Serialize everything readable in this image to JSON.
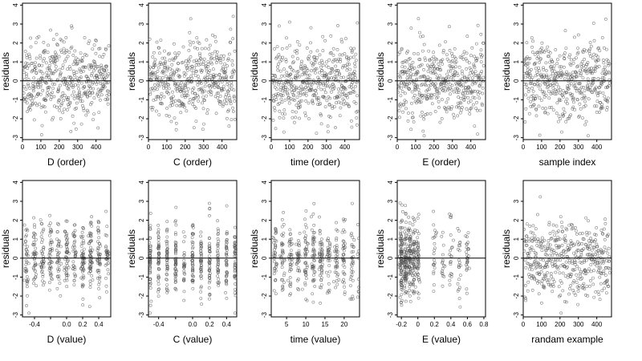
{
  "chart_data": [
    {
      "type": "scatter",
      "xlabel": "D (order)",
      "ylabel": "residuals",
      "xlim": [
        0,
        480
      ],
      "ylim": [
        -3.1,
        4.1
      ],
      "xticks": [
        0,
        100,
        200,
        300,
        400
      ],
      "yticks": [
        -3,
        -2,
        -1,
        0,
        1,
        2,
        3,
        4
      ],
      "hline": 0,
      "x_kind": "order",
      "x_clusters": [],
      "cluster_sd": 0,
      "seed": 11
    },
    {
      "type": "scatter",
      "xlabel": "C (order)",
      "ylabel": "residuals",
      "xlim": [
        0,
        480
      ],
      "ylim": [
        -3.1,
        4.1
      ],
      "xticks": [
        0,
        100,
        200,
        300,
        400
      ],
      "yticks": [
        -3,
        -2,
        -1,
        0,
        1,
        2,
        3,
        4
      ],
      "hline": 0,
      "x_kind": "order",
      "x_clusters": [],
      "cluster_sd": 0,
      "seed": 23
    },
    {
      "type": "scatter",
      "xlabel": "time (order)",
      "ylabel": "residuals",
      "xlim": [
        0,
        480
      ],
      "ylim": [
        -3.1,
        4.1
      ],
      "xticks": [
        0,
        100,
        200,
        300,
        400
      ],
      "yticks": [
        -3,
        -2,
        -1,
        0,
        1,
        2,
        3,
        4
      ],
      "hline": 0,
      "x_kind": "order",
      "x_clusters": [],
      "cluster_sd": 0,
      "seed": 37
    },
    {
      "type": "scatter",
      "xlabel": "E (order)",
      "ylabel": "residuals",
      "xlim": [
        0,
        480
      ],
      "ylim": [
        -3.1,
        4.1
      ],
      "xticks": [
        0,
        100,
        200,
        300,
        400
      ],
      "yticks": [
        -3,
        -2,
        -1,
        0,
        1,
        2,
        3,
        4
      ],
      "hline": 0,
      "x_kind": "order",
      "x_clusters": [],
      "cluster_sd": 0,
      "seed": 41
    },
    {
      "type": "scatter",
      "xlabel": "sample index",
      "ylabel": "residuals",
      "xlim": [
        0,
        480
      ],
      "ylim": [
        -3.1,
        4.1
      ],
      "xticks": [
        0,
        100,
        200,
        300,
        400
      ],
      "yticks": [
        -3,
        -2,
        -1,
        0,
        1,
        2,
        3,
        4
      ],
      "hline": 0,
      "x_kind": "order",
      "x_clusters": [],
      "cluster_sd": 0,
      "seed": 53
    },
    {
      "type": "scatter",
      "xlabel": "D (value)",
      "ylabel": "residuals",
      "xlim": [
        -0.55,
        0.55
      ],
      "ylim": [
        -3.1,
        4.1
      ],
      "xticks": [
        -0.4,
        -0.2,
        0.0,
        0.2,
        0.4
      ],
      "xtick_labels": [
        "-0.4",
        "",
        "0.0",
        "0.2",
        "0.4"
      ],
      "yticks": [
        -3,
        -2,
        -1,
        0,
        1,
        2,
        3,
        4
      ],
      "hline": 0,
      "x_kind": "clusters",
      "x_clusters": [
        -0.5,
        -0.4,
        -0.3,
        -0.2,
        -0.1,
        0.0,
        0.1,
        0.2,
        0.3,
        0.4,
        0.5
      ],
      "cluster_sd": 0.012,
      "seed": 61
    },
    {
      "type": "scatter",
      "xlabel": "C (value)",
      "ylabel": "residuals",
      "xlim": [
        -0.52,
        0.52
      ],
      "ylim": [
        -3.1,
        4.1
      ],
      "xticks": [
        -0.4,
        -0.2,
        0.0,
        0.2,
        0.4
      ],
      "xtick_labels": [
        "-0.4",
        "",
        "0.0",
        "0.2",
        "0.4"
      ],
      "yticks": [
        -3,
        -2,
        -1,
        0,
        1,
        2,
        3,
        4
      ],
      "hline": 0,
      "x_kind": "clusters",
      "x_clusters": [
        -0.5,
        -0.4,
        -0.3,
        -0.2,
        -0.1,
        0.0,
        0.1,
        0.2,
        0.3,
        0.4,
        0.5
      ],
      "cluster_sd": 0.004,
      "seed": 71
    },
    {
      "type": "scatter",
      "xlabel": "time (value)",
      "ylabel": "residuals",
      "xlim": [
        1,
        24
      ],
      "ylim": [
        -3.1,
        4.1
      ],
      "xticks": [
        5,
        10,
        15,
        20
      ],
      "yticks": [
        -3,
        -2,
        -1,
        0,
        1,
        2,
        3,
        4
      ],
      "hline": 0,
      "x_kind": "clusters",
      "x_clusters": [
        2,
        4,
        6,
        8,
        10,
        12,
        14,
        16,
        18,
        20,
        22,
        24
      ],
      "cluster_sd": 0.25,
      "seed": 83
    },
    {
      "type": "scatter",
      "xlabel": "E (value)",
      "ylabel": "residuals",
      "xlim": [
        -0.25,
        0.82
      ],
      "ylim": [
        -3.1,
        4.1
      ],
      "xticks": [
        -0.2,
        0.0,
        0.2,
        0.4,
        0.6,
        0.8
      ],
      "yticks": [
        -3,
        -2,
        -1,
        0,
        1,
        2,
        3,
        4
      ],
      "hline": 0,
      "x_kind": "skewed",
      "x_clusters": [
        -0.2,
        -0.15,
        -0.1,
        -0.05,
        0.0,
        0.2,
        0.3,
        0.4,
        0.5,
        0.6
      ],
      "cluster_sd": 0.01,
      "seed": 97
    },
    {
      "type": "scatter",
      "xlabel": "randam example",
      "ylabel": "residuals",
      "xlim": [
        0,
        480
      ],
      "ylim": [
        -3.1,
        4.1
      ],
      "xticks": [
        0,
        100,
        200,
        300,
        400
      ],
      "yticks": [
        -3,
        -2,
        -1,
        0,
        1,
        2,
        3
      ],
      "hline": 0,
      "x_kind": "order",
      "x_clusters": [],
      "cluster_sd": 0,
      "seed": 101
    }
  ],
  "colors": {
    "points": "#555555",
    "axis": "#000000",
    "background": "#ffffff"
  }
}
